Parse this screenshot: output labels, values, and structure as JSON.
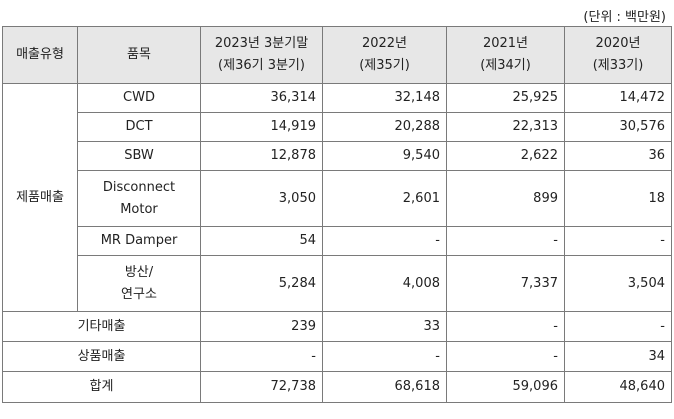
{
  "unit_note": "(단위 : 백만원)",
  "header": {
    "type": "매출유형",
    "item": "품목",
    "years": [
      {
        "line1": "2023년 3분기말",
        "line2": "(제36기 3분기)"
      },
      {
        "line1": "2022년",
        "line2": "(제35기)"
      },
      {
        "line1": "2021년",
        "line2": "(제34기)"
      },
      {
        "line1": "2020년",
        "line2": "(제33기)"
      }
    ]
  },
  "product_group": {
    "label": "제품매출",
    "rows": [
      {
        "item": "CWD",
        "values": [
          "36,314",
          "32,148",
          "25,925",
          "14,472"
        ]
      },
      {
        "item": "DCT",
        "values": [
          "14,919",
          "20,288",
          "22,313",
          "30,576"
        ]
      },
      {
        "item": "SBW",
        "values": [
          "12,878",
          "9,540",
          "2,622",
          "36"
        ]
      },
      {
        "item_line1": "Disconnect",
        "item_line2": "Motor",
        "values": [
          "3,050",
          "2,601",
          "899",
          "18"
        ]
      },
      {
        "item": "MR Damper",
        "values": [
          "54",
          "-",
          "-",
          "-"
        ]
      },
      {
        "item_line1": "방산/",
        "item_line2": "연구소",
        "values": [
          "5,284",
          "4,008",
          "7,337",
          "3,504"
        ]
      }
    ]
  },
  "other_rows": [
    {
      "label": "기타매출",
      "values": [
        "239",
        "33",
        "-",
        "-"
      ]
    },
    {
      "label": "상품매출",
      "values": [
        "-",
        "-",
        "-",
        "34"
      ]
    }
  ],
  "total": {
    "label": "합계",
    "values": [
      "72,738",
      "68,618",
      "59,096",
      "48,640"
    ]
  }
}
